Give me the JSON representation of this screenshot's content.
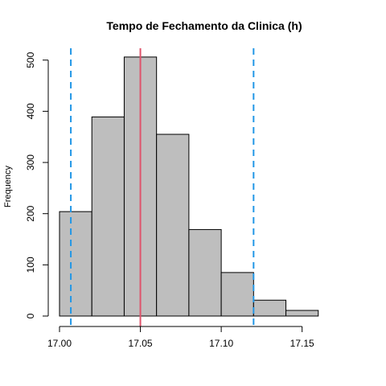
{
  "chart_data": {
    "type": "bar",
    "title": "Tempo de Fechamento da Clinica (h)",
    "xlabel": "",
    "ylabel": "Frequency",
    "bins": [
      {
        "from": 17.0,
        "to": 17.02,
        "count": 204
      },
      {
        "from": 17.02,
        "to": 17.04,
        "count": 389
      },
      {
        "from": 17.04,
        "to": 17.06,
        "count": 506
      },
      {
        "from": 17.06,
        "to": 17.08,
        "count": 355
      },
      {
        "from": 17.08,
        "to": 17.1,
        "count": 169
      },
      {
        "from": 17.1,
        "to": 17.12,
        "count": 85
      },
      {
        "from": 17.12,
        "to": 17.14,
        "count": 31
      },
      {
        "from": 17.14,
        "to": 17.16,
        "count": 11
      }
    ],
    "xlim": [
      17.0,
      17.18
    ],
    "ylim": [
      0,
      520
    ],
    "x_ticks": [
      {
        "value": 17.0,
        "label": "17.00"
      },
      {
        "value": 17.05,
        "label": "17.05"
      },
      {
        "value": 17.1,
        "label": "17.10"
      },
      {
        "value": 17.15,
        "label": "17.15"
      }
    ],
    "y_ticks": [
      {
        "value": 0,
        "label": "0"
      },
      {
        "value": 100,
        "label": "100"
      },
      {
        "value": 200,
        "label": "200"
      },
      {
        "value": 300,
        "label": "300"
      },
      {
        "value": 400,
        "label": "400"
      },
      {
        "value": 500,
        "label": "500"
      }
    ],
    "reference_lines": [
      {
        "value": 17.05,
        "style": "solid",
        "color": "#DF536B"
      },
      {
        "value": 17.007,
        "style": "dashed",
        "color": "#2297E6"
      },
      {
        "value": 17.12,
        "style": "dashed",
        "color": "#2297E6"
      }
    ],
    "bar_fill": "#BEBEBE",
    "bar_stroke": "#000000",
    "grid": false,
    "legend": "none"
  }
}
